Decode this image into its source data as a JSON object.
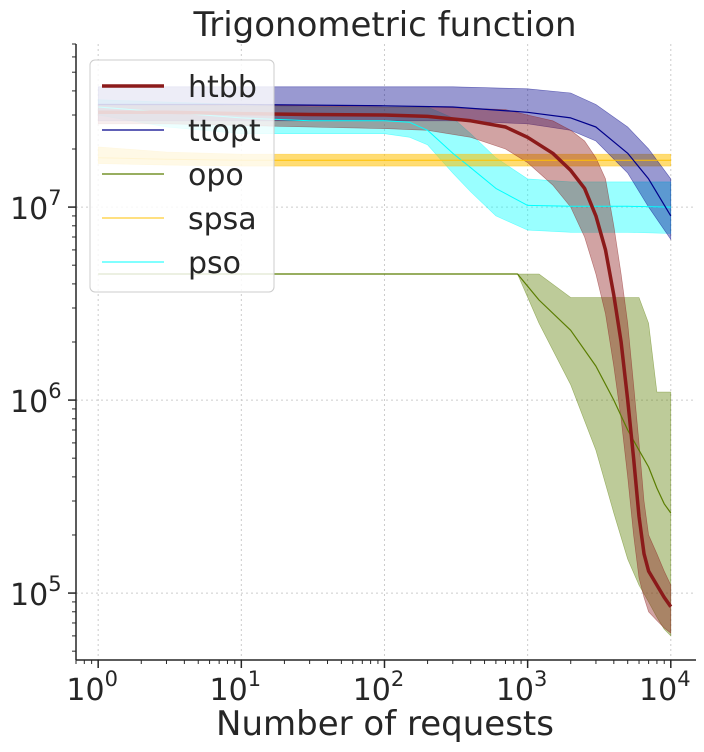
{
  "chart_data": {
    "type": "line",
    "title": "Trigonometric function",
    "xlabel": "Number of requests",
    "ylabel": "",
    "xscale": "log",
    "yscale": "log",
    "xlim": [
      0.7,
      15000
    ],
    "ylim": [
      45000,
      70000000
    ],
    "x_ticks": [
      {
        "value": 1,
        "base": "10",
        "exp": "0"
      },
      {
        "value": 10,
        "base": "10",
        "exp": "1"
      },
      {
        "value": 100,
        "base": "10",
        "exp": "2"
      },
      {
        "value": 1000,
        "base": "10",
        "exp": "3"
      },
      {
        "value": 10000,
        "base": "10",
        "exp": "4"
      }
    ],
    "y_ticks": [
      {
        "value": 100000,
        "base": "10",
        "exp": "5"
      },
      {
        "value": 1000000,
        "base": "10",
        "exp": "6"
      },
      {
        "value": 10000000,
        "base": "10",
        "exp": "7"
      }
    ],
    "grid": true,
    "legend_position": "top-left",
    "series": [
      {
        "name": "pso",
        "color": "#00ffff",
        "line_width": 1,
        "x": [
          1,
          3,
          10,
          30,
          100,
          150,
          200,
          300,
          400,
          600,
          1000,
          2000,
          5000,
          10000
        ],
        "y": [
          33000000,
          31000000,
          29000000,
          28000000,
          28000000,
          27500000,
          25000000,
          19000000,
          16000000,
          12500000,
          10200000,
          10100000,
          10100000,
          10000000
        ],
        "lower": [
          30000000,
          26000000,
          24000000,
          24000000,
          24000000,
          23000000,
          21000000,
          15000000,
          12000000,
          9000000,
          7600000,
          7400000,
          7400000,
          7300000
        ],
        "upper": [
          36000000,
          35000000,
          34000000,
          33000000,
          33000000,
          33000000,
          33000000,
          29000000,
          24000000,
          18000000,
          14000000,
          13500000,
          13500000,
          13500000
        ]
      },
      {
        "name": "spsa",
        "color": "#ffc000",
        "line_width": 1,
        "x": [
          1,
          3,
          10,
          100,
          1000,
          10000
        ],
        "y": [
          18000000,
          17700000,
          17500000,
          17500000,
          17500000,
          17500000
        ],
        "lower": [
          16800000,
          16500000,
          16300000,
          16300000,
          16300000,
          16300000
        ],
        "upper": [
          20500000,
          19300000,
          18800000,
          18800000,
          18800000,
          18800000
        ]
      },
      {
        "name": "ttopt",
        "color": "#00008b",
        "line_width": 1.2,
        "x": [
          1,
          10,
          100,
          300,
          1000,
          2000,
          3000,
          5000,
          7000,
          10000
        ],
        "y": [
          34000000,
          34000000,
          33500000,
          33000000,
          31000000,
          29000000,
          26000000,
          19000000,
          14000000,
          9000000
        ],
        "lower": [
          28000000,
          28000000,
          28000000,
          28000000,
          27000000,
          25000000,
          22000000,
          15000000,
          10000000,
          6800000
        ],
        "upper": [
          42000000,
          42000000,
          42000000,
          42000000,
          41000000,
          39000000,
          34000000,
          26000000,
          20000000,
          14000000
        ]
      },
      {
        "name": "opo",
        "color": "#5a7d00",
        "line_width": 1.2,
        "x": [
          1,
          10,
          100,
          850,
          1200,
          2000,
          3000,
          4000,
          5000,
          6000,
          7000,
          8000,
          9000,
          10000
        ],
        "y": [
          4500000,
          4500000,
          4500000,
          4500000,
          3300000,
          2300000,
          1500000,
          1000000,
          700000,
          550000,
          450000,
          350000,
          290000,
          260000
        ],
        "lower": [
          4500000,
          4500000,
          4500000,
          4500000,
          2500000,
          1200000,
          550000,
          260000,
          150000,
          110000,
          90000,
          75000,
          65000,
          60000
        ],
        "upper": [
          4500000,
          4500000,
          4500000,
          4500000,
          4500000,
          3400000,
          3400000,
          3400000,
          3400000,
          3400000,
          2500000,
          1100000,
          1100000,
          1100000
        ]
      },
      {
        "name": "htbb",
        "color": "#8b1a1a",
        "line_width": 3.5,
        "x": [
          1,
          3,
          10,
          30,
          100,
          200,
          400,
          700,
          1000,
          1500,
          2000,
          2500,
          3000,
          3500,
          4000,
          4500,
          5000,
          5500,
          6000,
          6500,
          7000,
          8000,
          9000,
          10000
        ],
        "y": [
          31000000,
          31000000,
          30500000,
          30200000,
          30000000,
          29500000,
          28000000,
          26000000,
          23000000,
          19000000,
          15500000,
          12500000,
          9000000,
          6000000,
          3500000,
          2000000,
          1000000,
          500000,
          250000,
          160000,
          130000,
          110000,
          95000,
          85000
        ],
        "lower": [
          27000000,
          27000000,
          26500000,
          26000000,
          25500000,
          25000000,
          23000000,
          20000000,
          17000000,
          13000000,
          10000000,
          7000000,
          4500000,
          2800000,
          1500000,
          800000,
          400000,
          200000,
          120000,
          95000,
          80000,
          72000,
          66000,
          62000
        ],
        "upper": [
          34000000,
          34000000,
          33500000,
          33500000,
          33000000,
          33000000,
          32500000,
          32000000,
          30000000,
          28000000,
          25000000,
          22000000,
          18000000,
          14000000,
          8000000,
          4500000,
          2500000,
          1200000,
          600000,
          300000,
          200000,
          160000,
          130000,
          110000
        ]
      }
    ],
    "legend_order": [
      "htbb",
      "ttopt",
      "opo",
      "spsa",
      "pso"
    ]
  }
}
